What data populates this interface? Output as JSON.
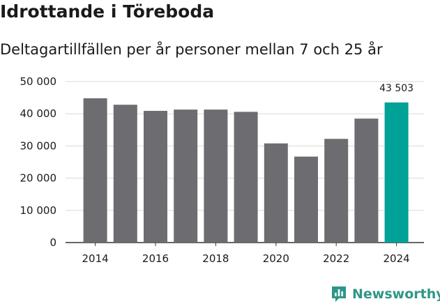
{
  "header": {
    "title": "Idrottande i Töreboda",
    "subtitle": "Deltagartillfällen per år personer mellan 7 och 25 år"
  },
  "chart_data": {
    "type": "bar",
    "title": "Idrottande i Töreboda",
    "subtitle": "Deltagartillfällen per år personer mellan 7 och 25 år",
    "xlabel": "",
    "ylabel": "",
    "categories": [
      "2014",
      "2015",
      "2016",
      "2017",
      "2018",
      "2019",
      "2020",
      "2021",
      "2022",
      "2023",
      "2024"
    ],
    "values": [
      44800,
      42800,
      40900,
      41300,
      41300,
      40600,
      30800,
      26700,
      32200,
      38500,
      43503
    ],
    "x_tick_labels": [
      "2014",
      "2016",
      "2018",
      "2020",
      "2022",
      "2024"
    ],
    "y_tick_labels": [
      "0",
      "10 000",
      "20 000",
      "30 000",
      "40 000",
      "50 000"
    ],
    "y_ticks": [
      0,
      10000,
      20000,
      30000,
      40000,
      50000
    ],
    "ylim": [
      0,
      50000
    ],
    "grid": true,
    "highlight": {
      "category": "2024",
      "label": "43 503"
    },
    "colors": {
      "bar": "#6d6c71",
      "highlight": "#00a197",
      "grid": "#d9d9d9",
      "axis": "#333333"
    }
  },
  "brand": {
    "name": "Newsworthy",
    "icon": "bar-chart-logo-icon",
    "color": "#2e9687"
  }
}
